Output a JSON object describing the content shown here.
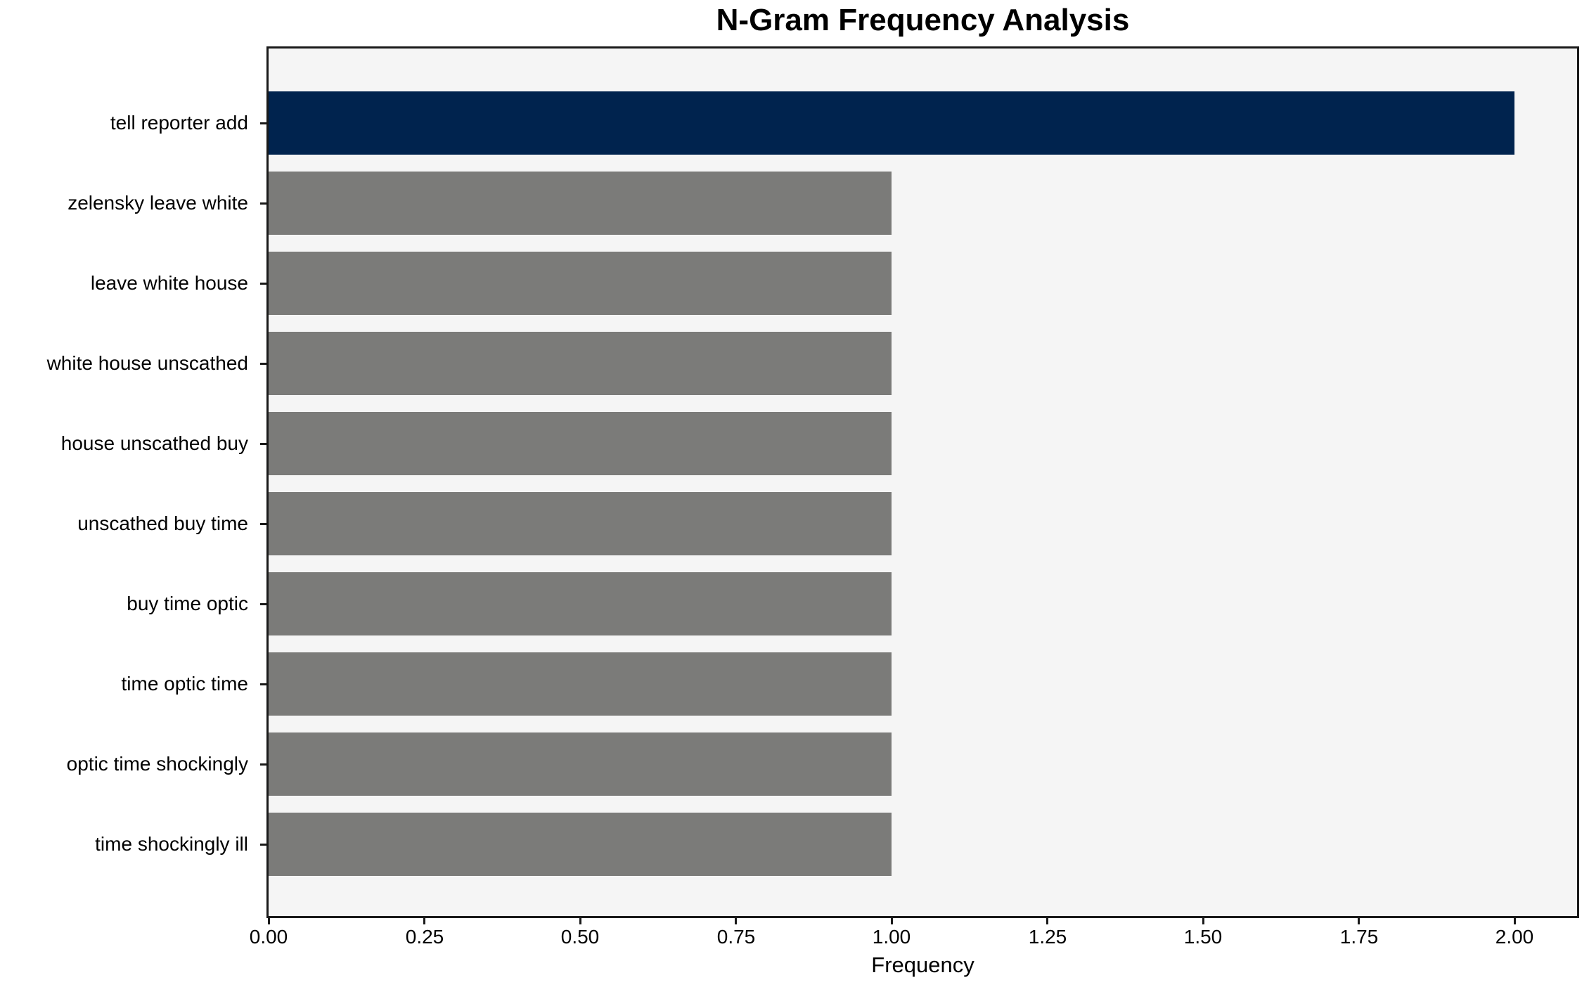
{
  "chart_data": {
    "type": "bar",
    "orientation": "horizontal",
    "title": "N-Gram Frequency Analysis",
    "xlabel": "Frequency",
    "ylabel": "",
    "categories": [
      "tell reporter add",
      "zelensky leave white",
      "leave white house",
      "white house unscathed",
      "house unscathed buy",
      "unscathed buy time",
      "buy time optic",
      "time optic time",
      "optic time shockingly",
      "time shockingly ill"
    ],
    "values": [
      2,
      1,
      1,
      1,
      1,
      1,
      1,
      1,
      1,
      1
    ],
    "bar_colors": [
      "#00234e",
      "#7b7b79",
      "#7b7b79",
      "#7b7b79",
      "#7b7b79",
      "#7b7b79",
      "#7b7b79",
      "#7b7b79",
      "#7b7b79",
      "#7b7b79"
    ],
    "xlim": [
      0,
      2.1
    ],
    "xticks": {
      "values": [
        0,
        0.25,
        0.5,
        0.75,
        1.0,
        1.25,
        1.5,
        1.75,
        2.0
      ],
      "labels": [
        "0.00",
        "0.25",
        "0.50",
        "0.75",
        "1.00",
        "1.25",
        "1.50",
        "1.75",
        "2.00"
      ]
    },
    "grid": false,
    "legend": false,
    "colors": {
      "highlight_bar": "#00234e",
      "default_bar": "#7b7b79",
      "plot_background": "#f5f5f5",
      "figure_background": "#ffffff",
      "axis": "#1a1a1a",
      "text": "#000000"
    }
  }
}
